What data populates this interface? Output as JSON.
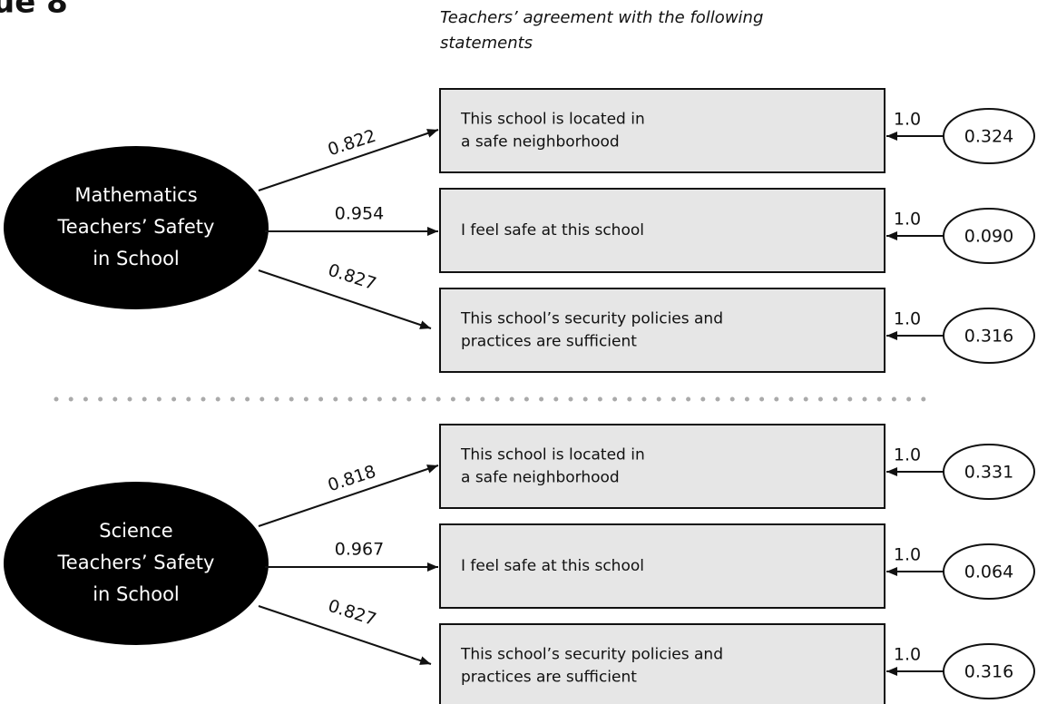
{
  "figure_label": "ue 8",
  "subtitle": [
    "Teachers’ agreement with the following",
    "statements"
  ],
  "groups": [
    {
      "factor": [
        "Mathematics",
        "Teachers’ Safety",
        "in School"
      ],
      "items": [
        {
          "loading": "0.822",
          "text": [
            "This school is located in",
            "a safe neighborhood"
          ],
          "error_path": "1.0",
          "error": "0.324"
        },
        {
          "loading": "0.954",
          "text": [
            "I feel safe at this school"
          ],
          "error_path": "1.0",
          "error": "0.090"
        },
        {
          "loading": "0.827",
          "text": [
            "This school’s security policies and",
            "practices are sufficient"
          ],
          "error_path": "1.0",
          "error": "0.316"
        }
      ]
    },
    {
      "factor": [
        "Science",
        "Teachers’ Safety",
        "in School"
      ],
      "items": [
        {
          "loading": "0.818",
          "text": [
            "This school is located in",
            "a safe neighborhood"
          ],
          "error_path": "1.0",
          "error": "0.331"
        },
        {
          "loading": "0.967",
          "text": [
            "I feel safe at this school"
          ],
          "error_path": "1.0",
          "error": "0.064"
        },
        {
          "loading": "0.827",
          "text": [
            "This school’s security policies and",
            "practices are sufficient"
          ],
          "error_path": "1.0",
          "error": "0.316"
        }
      ]
    }
  ]
}
